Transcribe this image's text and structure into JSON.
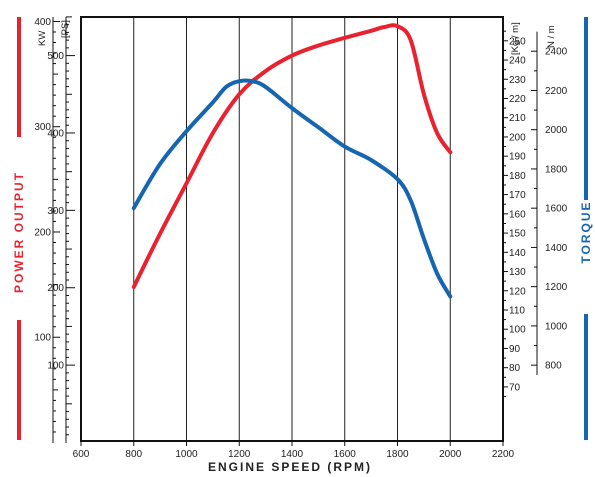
{
  "chart_data": {
    "type": "line",
    "xlabel": "ENGINE SPEED (RPM)",
    "xticks": [
      600,
      800,
      1000,
      1200,
      1400,
      1600,
      1800,
      2000,
      2200
    ],
    "xlim": [
      600,
      2200
    ],
    "left_label": "POWER OUTPUT",
    "right_label": "TORQUE",
    "kw_unit": "KW",
    "ps_unit": "[PS]",
    "kgm_unit": "[Kg / m]",
    "nm_unit": "N / m",
    "ps_ticks": [
      "100",
      "200",
      "300",
      "400",
      "500"
    ],
    "ps_top": "600",
    "kw_ticks": [
      "100",
      "200",
      "300"
    ],
    "kw_top": "400",
    "kgm_ticks": [
      "70",
      "80",
      "90",
      "100",
      "110",
      "120",
      "130",
      "140",
      "150",
      "160",
      "170",
      "180",
      "190",
      "200",
      "210",
      "220",
      "230",
      "240",
      "250"
    ],
    "nm_ticks": [
      "800",
      "1000",
      "1200",
      "1400",
      "1600",
      "1800",
      "2000",
      "2200",
      "2400"
    ],
    "colors": {
      "power": "#e8222e",
      "torque": "#1565b0"
    },
    "series": [
      {
        "key": "power",
        "unit": "PS",
        "x": [
          800,
          900,
          1000,
          1100,
          1200,
          1300,
          1400,
          1500,
          1600,
          1700,
          1750,
          1800,
          1850,
          1900,
          1950,
          2000
        ],
        "y": [
          201,
          270,
          335,
          400,
          450,
          480,
          500,
          513,
          523,
          532,
          537,
          538,
          520,
          450,
          400,
          375
        ]
      },
      {
        "key": "torque",
        "unit": "Kg/m",
        "x": [
          800,
          900,
          1000,
          1100,
          1150,
          1200,
          1250,
          1300,
          1400,
          1500,
          1600,
          1700,
          1800,
          1850,
          1900,
          1950,
          2000
        ],
        "y": [
          163,
          186,
          203,
          218,
          226,
          229,
          229,
          226,
          215,
          205,
          195,
          188,
          178,
          167,
          147,
          129,
          117
        ]
      }
    ]
  }
}
